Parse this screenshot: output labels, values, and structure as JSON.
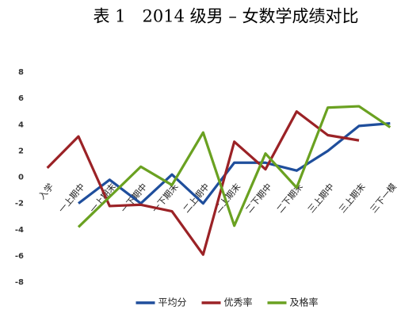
{
  "chart_data": {
    "type": "line",
    "title": "表 1　2014 级男 – 女数学成绩对比",
    "categories": [
      "入学",
      "一上期中",
      "一上期末",
      "一下期中",
      "一下期末",
      "二上期中",
      "二上期末",
      "二下期中",
      "二下期末",
      "三上期中",
      "三上期末",
      "三下一模"
    ],
    "series": [
      {
        "name": "平均分",
        "color": "#1f4e9c",
        "values": [
          null,
          -2,
          -0.2,
          -2,
          0.2,
          -2,
          1.1,
          1.1,
          0.5,
          2,
          3.9,
          4.1
        ]
      },
      {
        "name": "优秀率",
        "color": "#9b2226",
        "values": [
          0.7,
          3.1,
          -2.2,
          -2.1,
          -2.6,
          -5.9,
          2.7,
          0.6,
          5,
          3.2,
          2.8,
          null
        ]
      },
      {
        "name": "及格率",
        "color": "#6aa121",
        "values": [
          null,
          -3.8,
          -1.5,
          0.8,
          -0.6,
          3.4,
          -3.7,
          1.8,
          -0.8,
          5.3,
          5.4,
          3.8
        ]
      }
    ],
    "ylim": [
      -8,
      8
    ],
    "yticks": [
      -8,
      -6,
      -4,
      -2,
      0,
      2,
      4,
      6,
      8
    ],
    "grid": false,
    "legend": "bottom"
  }
}
